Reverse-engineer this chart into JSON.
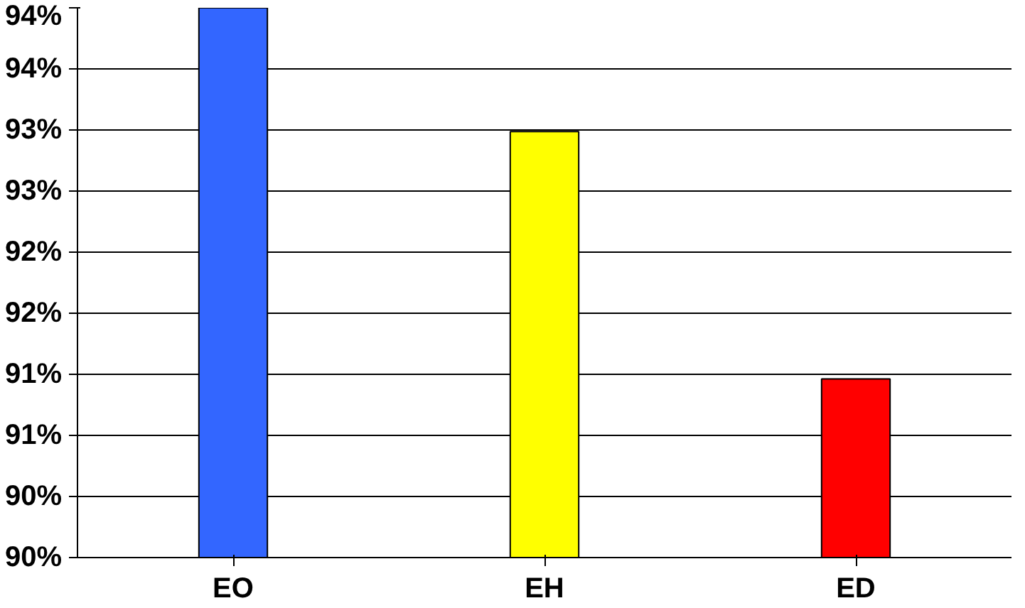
{
  "chart_data": {
    "type": "bar",
    "categories": [
      "EO",
      "EH",
      "ED"
    ],
    "values": [
      94.0,
      93.1,
      91.3
    ],
    "colors": [
      "#3366ff",
      "#ffff00",
      "#ff0000"
    ],
    "ylim": [
      90,
      94
    ],
    "yticks": [
      {
        "value": 90,
        "label": "90%"
      },
      {
        "value": 90.444,
        "label": "90%"
      },
      {
        "value": 90.889,
        "label": "91%"
      },
      {
        "value": 91.333,
        "label": "91%"
      },
      {
        "value": 91.778,
        "label": "92%"
      },
      {
        "value": 92.222,
        "label": "92%"
      },
      {
        "value": 92.667,
        "label": "93%"
      },
      {
        "value": 93.111,
        "label": "93%"
      },
      {
        "value": 93.556,
        "label": "94%"
      },
      {
        "value": 94,
        "label": "94%"
      }
    ],
    "grid": "y"
  }
}
